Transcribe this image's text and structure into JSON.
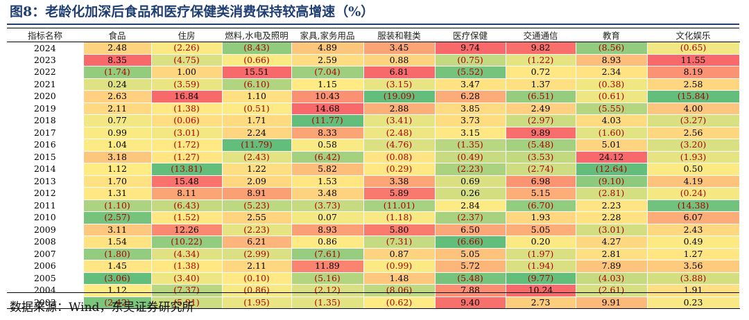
{
  "title": "图8：老龄化加深后食品和医疗保健类消费保持较高增速（%）",
  "source": "数据来源：Wind，东吴证券研究所",
  "chart_data": {
    "type": "heatmap",
    "row_header": "指标名称",
    "columns": [
      "食品",
      "住房",
      "燃料,水电及照明",
      "家具,家务用品",
      "服装和鞋类",
      "医疗保健",
      "交通通信",
      "教育",
      "文化娱乐"
    ],
    "rows": [
      {
        "year": "2024",
        "values": [
          2.48,
          -2.26,
          -8.43,
          4.89,
          3.45,
          9.74,
          9.82,
          -8.56,
          -0.65
        ]
      },
      {
        "year": "2023",
        "values": [
          8.35,
          -4.75,
          -0.66,
          2.59,
          0.88,
          -0.75,
          -1.22,
          8.93,
          11.55
        ]
      },
      {
        "year": "2022",
        "values": [
          -1.74,
          1.0,
          15.51,
          -7.04,
          6.81,
          -5.52,
          0.72,
          2.34,
          8.19
        ]
      },
      {
        "year": "2021",
        "values": [
          0.24,
          -3.59,
          -6.1,
          1.15,
          -3.15,
          3.47,
          1.37,
          -0.38,
          2.58
        ]
      },
      {
        "year": "2020",
        "values": [
          2.63,
          16.84,
          1.1,
          10.43,
          -19.09,
          6.28,
          -6.51,
          -0.61,
          -15.84
        ]
      },
      {
        "year": "2019",
        "values": [
          2.11,
          -1.38,
          -0.51,
          14.68,
          2.88,
          3.85,
          2.49,
          -5.55,
          4.0
        ]
      },
      {
        "year": "2018",
        "values": [
          0.77,
          -0.06,
          1.71,
          -11.77,
          -3.41,
          3.73,
          -2.97,
          4.03,
          -3.27
        ]
      },
      {
        "year": "2017",
        "values": [
          0.99,
          -3.01,
          2.24,
          8.33,
          -2.48,
          3.15,
          9.89,
          -1.6,
          2.56
        ]
      },
      {
        "year": "2016",
        "values": [
          1.04,
          -1.72,
          -11.79,
          0.58,
          -4.76,
          -1.35,
          -5.48,
          5.01,
          -3.2
        ]
      },
      {
        "year": "2015",
        "values": [
          3.18,
          -1.27,
          -2.43,
          -6.42,
          -0.08,
          -0.49,
          -3.53,
          24.12,
          -1.93
        ]
      },
      {
        "year": "2014",
        "values": [
          1.12,
          -13.81,
          1.22,
          5.82,
          -0.29,
          -2.23,
          -2.74,
          -12.64,
          0.5
        ]
      },
      {
        "year": "2013",
        "values": [
          1.7,
          15.48,
          2.09,
          1.53,
          3.38,
          0.69,
          6.98,
          -9.1,
          4.19
        ]
      },
      {
        "year": "2012",
        "values": [
          1.31,
          8.11,
          8.91,
          3.48,
          5.89,
          0.26,
          5.15,
          -2.81,
          -0.24
        ]
      },
      {
        "year": "2011",
        "values": [
          -1.1,
          -6.43,
          -5.23,
          -3.73,
          -11.01,
          2.84,
          -6.7,
          2.23,
          -14.38
        ]
      },
      {
        "year": "2010",
        "values": [
          -2.57,
          -1.52,
          2.55,
          0.07,
          -1.18,
          -2.37,
          1.93,
          2.28,
          6.07
        ]
      },
      {
        "year": "2009",
        "values": [
          3.11,
          12.26,
          -2.23,
          8.93,
          5.8,
          6.5,
          5.05,
          -3.01,
          2.43
        ]
      },
      {
        "year": "2008",
        "values": [
          1.54,
          -10.22,
          6.21,
          0.86,
          -7.31,
          -6.66,
          0.2,
          4.27,
          0.49
        ]
      },
      {
        "year": "2007",
        "values": [
          -1.8,
          -4.34,
          -2.99,
          -7.61,
          0.87,
          5.05,
          -1.97,
          2.81,
          1.27
        ]
      },
      {
        "year": "2006",
        "values": [
          1.45,
          -1.38,
          2.11,
          11.89,
          -0.99,
          5.72,
          -1.94,
          7.89,
          3.56
        ]
      },
      {
        "year": "2005",
        "values": [
          -3.06,
          -3.4,
          -0.1,
          -5.16,
          1.48,
          -5.48,
          -9.77,
          -4.03,
          -3.88
        ]
      },
      {
        "year": "2004",
        "values": [
          1.12,
          -7.37,
          -0.86,
          -2.12,
          -8.06,
          7.88,
          10.24,
          -2.61,
          1.91
        ]
      },
      {
        "year": "2003",
        "values": [
          -2.42,
          -5.91,
          -1.95,
          -1.35,
          -0.62,
          9.4,
          2.73,
          9.91,
          0.23
        ]
      }
    ],
    "color_scale": {
      "low": "#63be7b",
      "mid": "#ffeb84",
      "high": "#f8696b"
    },
    "negative_format": "parentheses"
  }
}
